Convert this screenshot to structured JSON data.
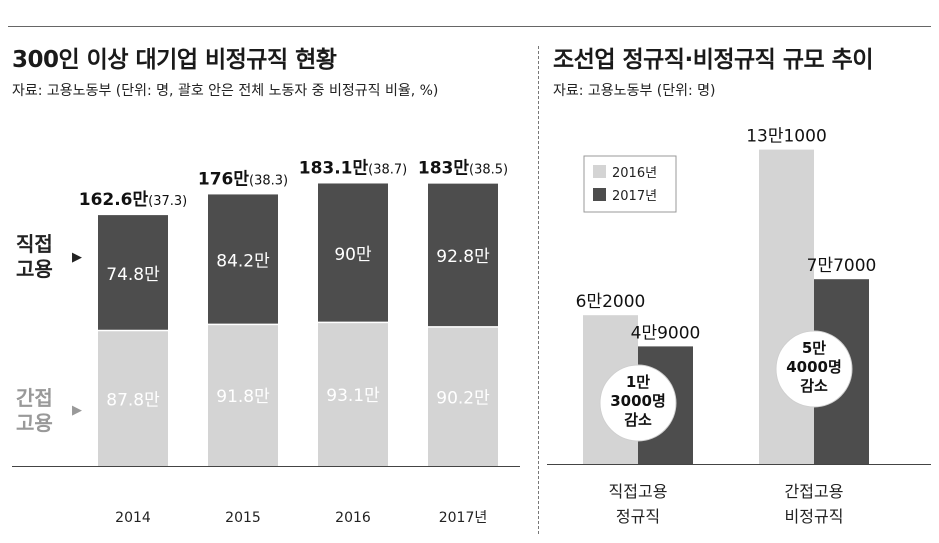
{
  "left": {
    "title": "300인 이상 대기업 비정규직 현황",
    "source": "자료: 고용노동부 (단위: 명, 괄호 안은 전체 노동자 중 비정규직 비율, %)",
    "label_direct": [
      "직접",
      "고용"
    ],
    "label_indirect": [
      "간접",
      "고용"
    ]
  },
  "right": {
    "title": "조선업 정규직·비정규직 규모 추이",
    "source": "자료: 고용노동부 (단위: 명)"
  },
  "colors": {
    "dark": "#4d4d4d",
    "light": "#d4d4d4",
    "gap": "#e6e6e6",
    "white": "#ffffff"
  },
  "chart_data": [
    {
      "type": "bar",
      "stacked": true,
      "categories": [
        "2014",
        "2015",
        "2016",
        "2017년"
      ],
      "series": [
        {
          "name": "간접고용",
          "values": [
            87.8,
            91.8,
            93.1,
            90.2
          ],
          "labels": [
            "87.8만",
            "91.8만",
            "93.1만",
            "90.2만"
          ],
          "color": "#d4d4d4"
        },
        {
          "name": "직접고용",
          "values": [
            74.8,
            84.2,
            90,
            92.8
          ],
          "labels": [
            "74.8만",
            "84.2만",
            "90만",
            "92.8만"
          ],
          "color": "#4d4d4d"
        }
      ],
      "totals": [
        162.6,
        176,
        183.1,
        183
      ],
      "total_labels": [
        {
          "main": "162.6만",
          "pct": "(37.3)"
        },
        {
          "main": "176만",
          "pct": "(38.3)"
        },
        {
          "main": "183.1만",
          "pct": "(38.7)"
        },
        {
          "main": "183만",
          "pct": "(38.5)"
        }
      ],
      "ratio_percent": [
        37.3,
        38.3,
        38.7,
        38.5
      ]
    },
    {
      "type": "bar",
      "categories": [
        [
          "직접고용",
          "정규직"
        ],
        [
          "간접고용",
          "비정규직"
        ]
      ],
      "series": [
        {
          "name": "2016년",
          "values": [
            62000,
            131000
          ],
          "labels": [
            "6만2000",
            "13만1000"
          ],
          "color": "#d4d4d4"
        },
        {
          "name": "2017년",
          "values": [
            49000,
            77000
          ],
          "labels": [
            "4만9000",
            "7만7000"
          ],
          "color": "#4d4d4d"
        }
      ],
      "annotations": [
        {
          "lines": [
            "1만",
            "3000명",
            "감소"
          ],
          "value": 13000
        },
        {
          "lines": [
            "5만",
            "4000명",
            "감소"
          ],
          "value": 54000
        }
      ],
      "legend": "top-left"
    }
  ]
}
